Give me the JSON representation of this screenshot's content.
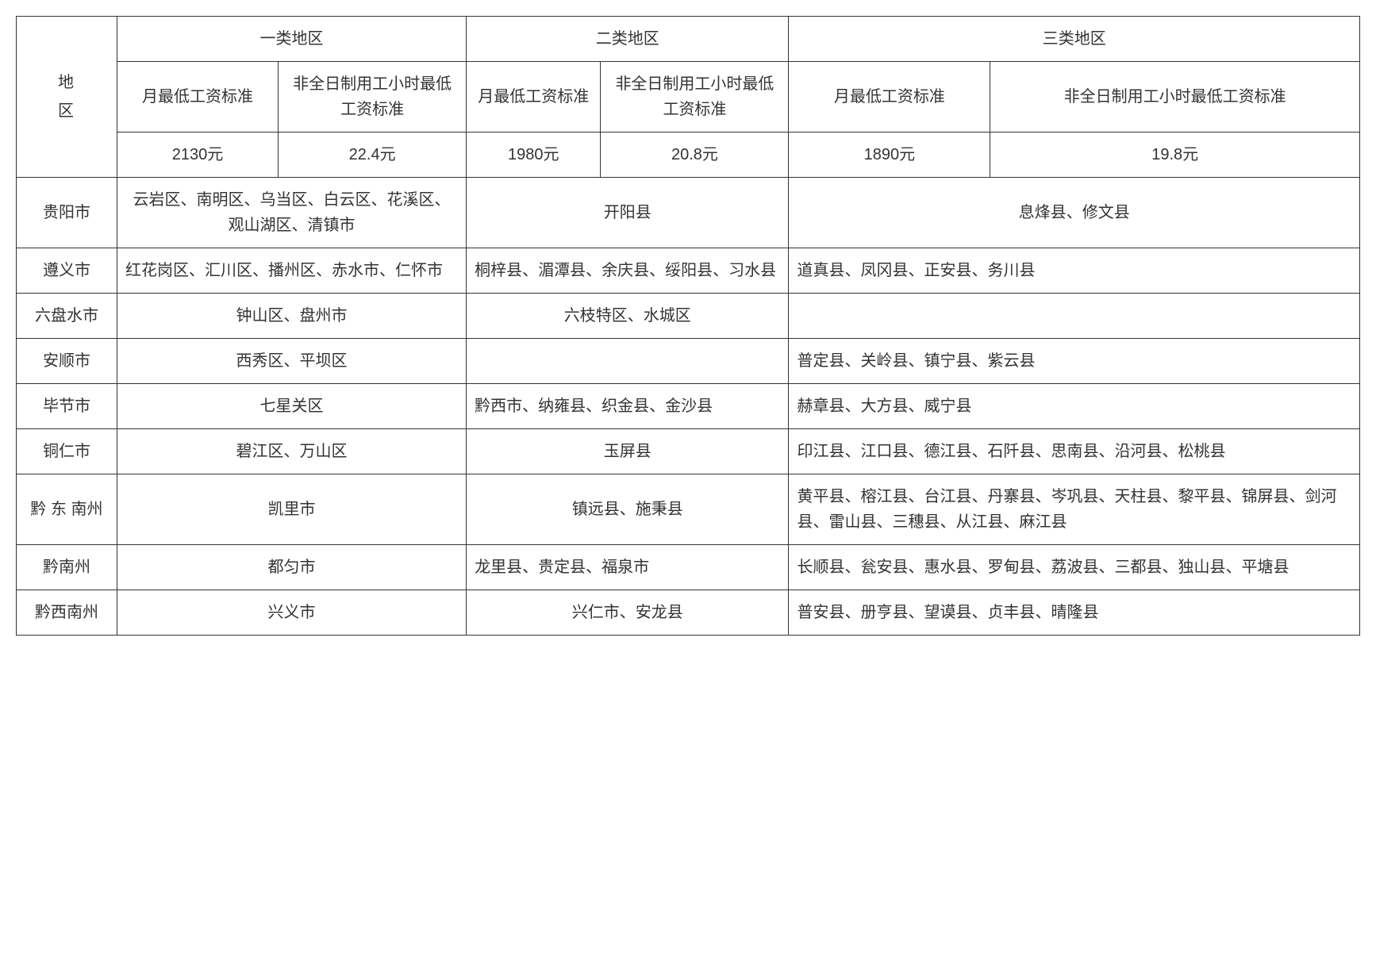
{
  "header": {
    "region_label_line1": "地",
    "region_label_line2": "区",
    "categories": [
      {
        "name": "一类地区",
        "monthly_label": "月最低工资标准",
        "hourly_label": "非全日制用工小时最低工资标准",
        "monthly_value": "2130元",
        "hourly_value": "22.4元"
      },
      {
        "name": "二类地区",
        "monthly_label": "月最低工资标准",
        "hourly_label": "非全日制用工小时最低工资标准",
        "monthly_value": "1980元",
        "hourly_value": "20.8元"
      },
      {
        "name": "三类地区",
        "monthly_label": "月最低工资标准",
        "hourly_label": "非全日制用工小时最低工资标准",
        "monthly_value": "1890元",
        "hourly_value": "19.8元"
      }
    ]
  },
  "rows": [
    {
      "region": "贵阳市",
      "cat1": "云岩区、南明区、乌当区、白云区、花溪区、观山湖区、清镇市",
      "cat2": "开阳县",
      "cat3": "息烽县、修文县",
      "cat1_align": "center",
      "cat2_align": "center",
      "cat3_align": "center"
    },
    {
      "region": "遵义市",
      "cat1": "红花岗区、汇川区、播州区、赤水市、仁怀市",
      "cat2": "桐梓县、湄潭县、余庆县、绥阳县、习水县",
      "cat3": "道真县、凤冈县、正安县、务川县",
      "cat1_align": "left",
      "cat2_align": "left",
      "cat3_align": "left"
    },
    {
      "region": "六盘水市",
      "cat1": "钟山区、盘州市",
      "cat2": "六枝特区、水城区",
      "cat3": "",
      "cat1_align": "center",
      "cat2_align": "center",
      "cat3_align": "left"
    },
    {
      "region": "安顺市",
      "cat1": "西秀区、平坝区",
      "cat2": "",
      "cat3": "普定县、关岭县、镇宁县、紫云县",
      "cat1_align": "center",
      "cat2_align": "center",
      "cat3_align": "left"
    },
    {
      "region": "毕节市",
      "cat1": "七星关区",
      "cat2": "黔西市、纳雍县、织金县、金沙县",
      "cat3": "赫章县、大方县、威宁县",
      "cat1_align": "center",
      "cat2_align": "left",
      "cat3_align": "left"
    },
    {
      "region": "铜仁市",
      "cat1": "碧江区、万山区",
      "cat2": "玉屏县",
      "cat3": "印江县、江口县、德江县、石阡县、思南县、沿河县、松桃县",
      "cat1_align": "center",
      "cat2_align": "center",
      "cat3_align": "left"
    },
    {
      "region": "黔 东 南州",
      "cat1": "凯里市",
      "cat2": "镇远县、施秉县",
      "cat3": "黄平县、榕江县、台江县、丹寨县、岑巩县、天柱县、黎平县、锦屏县、剑河县、雷山县、三穗县、从江县、麻江县",
      "cat1_align": "center",
      "cat2_align": "center",
      "cat3_align": "left"
    },
    {
      "region": "黔南州",
      "cat1": "都匀市",
      "cat2": "龙里县、贵定县、福泉市",
      "cat3": "长顺县、瓮安县、惠水县、罗甸县、荔波县、三都县、独山县、平塘县",
      "cat1_align": "center",
      "cat2_align": "left",
      "cat3_align": "left"
    },
    {
      "region": "黔西南州",
      "cat1": "兴义市",
      "cat2": "兴仁市、安龙县",
      "cat3": "普安县、册亨县、望谟县、贞丰县、晴隆县",
      "cat1_align": "center",
      "cat2_align": "center",
      "cat3_align": "left"
    }
  ]
}
